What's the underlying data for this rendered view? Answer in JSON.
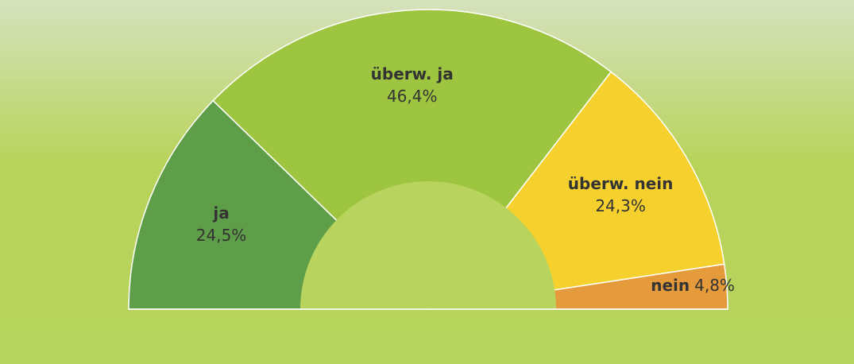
{
  "chart_data": {
    "type": "semi-donut",
    "categories": [
      "ja",
      "überw. ja",
      "überw. nein",
      "nein"
    ],
    "values": [
      24.5,
      46.4,
      24.3,
      4.8
    ],
    "value_labels": [
      "24,5%",
      "46,4%",
      "24,3%",
      "4,8%"
    ],
    "colors": [
      "#5f9e49",
      "#9ec53f",
      "#f6d12e",
      "#e59b3b"
    ]
  }
}
